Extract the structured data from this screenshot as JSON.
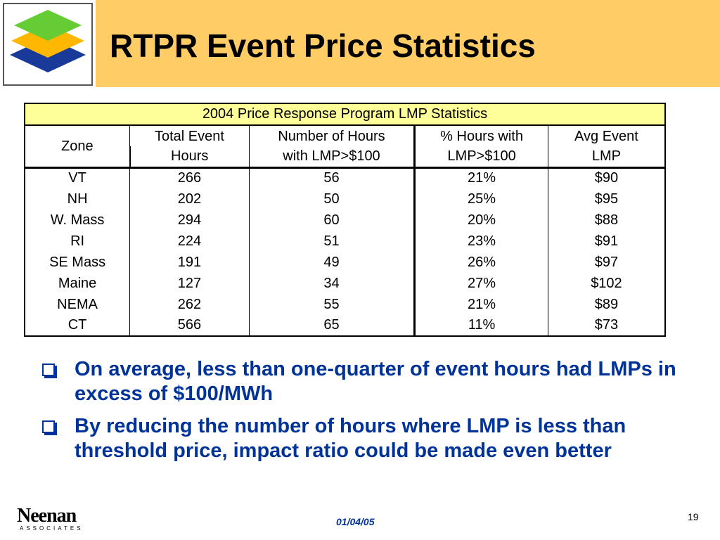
{
  "title": "RTPR Event Price Statistics",
  "table": {
    "caption": "2004 Price Response Program LMP Statistics",
    "headers": [
      {
        "line1": "Zone",
        "line2": ""
      },
      {
        "line1": "Total Event",
        "line2": "Hours"
      },
      {
        "line1": "Number of Hours",
        "line2": "with LMP>$100"
      },
      {
        "line1": "% Hours with",
        "line2": "LMP>$100"
      },
      {
        "line1": "Avg Event",
        "line2": "LMP"
      }
    ],
    "rows": [
      [
        "VT",
        "266",
        "56",
        "21%",
        "$90"
      ],
      [
        "NH",
        "202",
        "50",
        "25%",
        "$95"
      ],
      [
        "W. Mass",
        "294",
        "60",
        "20%",
        "$88"
      ],
      [
        "RI",
        "224",
        "51",
        "23%",
        "$91"
      ],
      [
        "SE Mass",
        "191",
        "49",
        "26%",
        "$97"
      ],
      [
        "Maine",
        "127",
        "34",
        "27%",
        "$102"
      ],
      [
        "NEMA",
        "262",
        "55",
        "21%",
        "$89"
      ],
      [
        "CT",
        "566",
        "65",
        "11%",
        "$73"
      ]
    ]
  },
  "bullets": [
    "On average, less than one-quarter of event hours had LMPs in excess of $100/MWh",
    "By reducing the number of hours where LMP is less than threshold price, impact ratio could be made even better"
  ],
  "footer": {
    "logo": "Neenan",
    "logo_sub": "ASSOCIATES",
    "date": "01/04/05",
    "page_number": "19"
  },
  "colors": {
    "title_bar": "#ffcc66",
    "caption_bg": "#ffff99",
    "bullet_text": "#003399",
    "logo_green": "#66cc33",
    "logo_yellow": "#ffcc00",
    "logo_blue": "#003399"
  }
}
